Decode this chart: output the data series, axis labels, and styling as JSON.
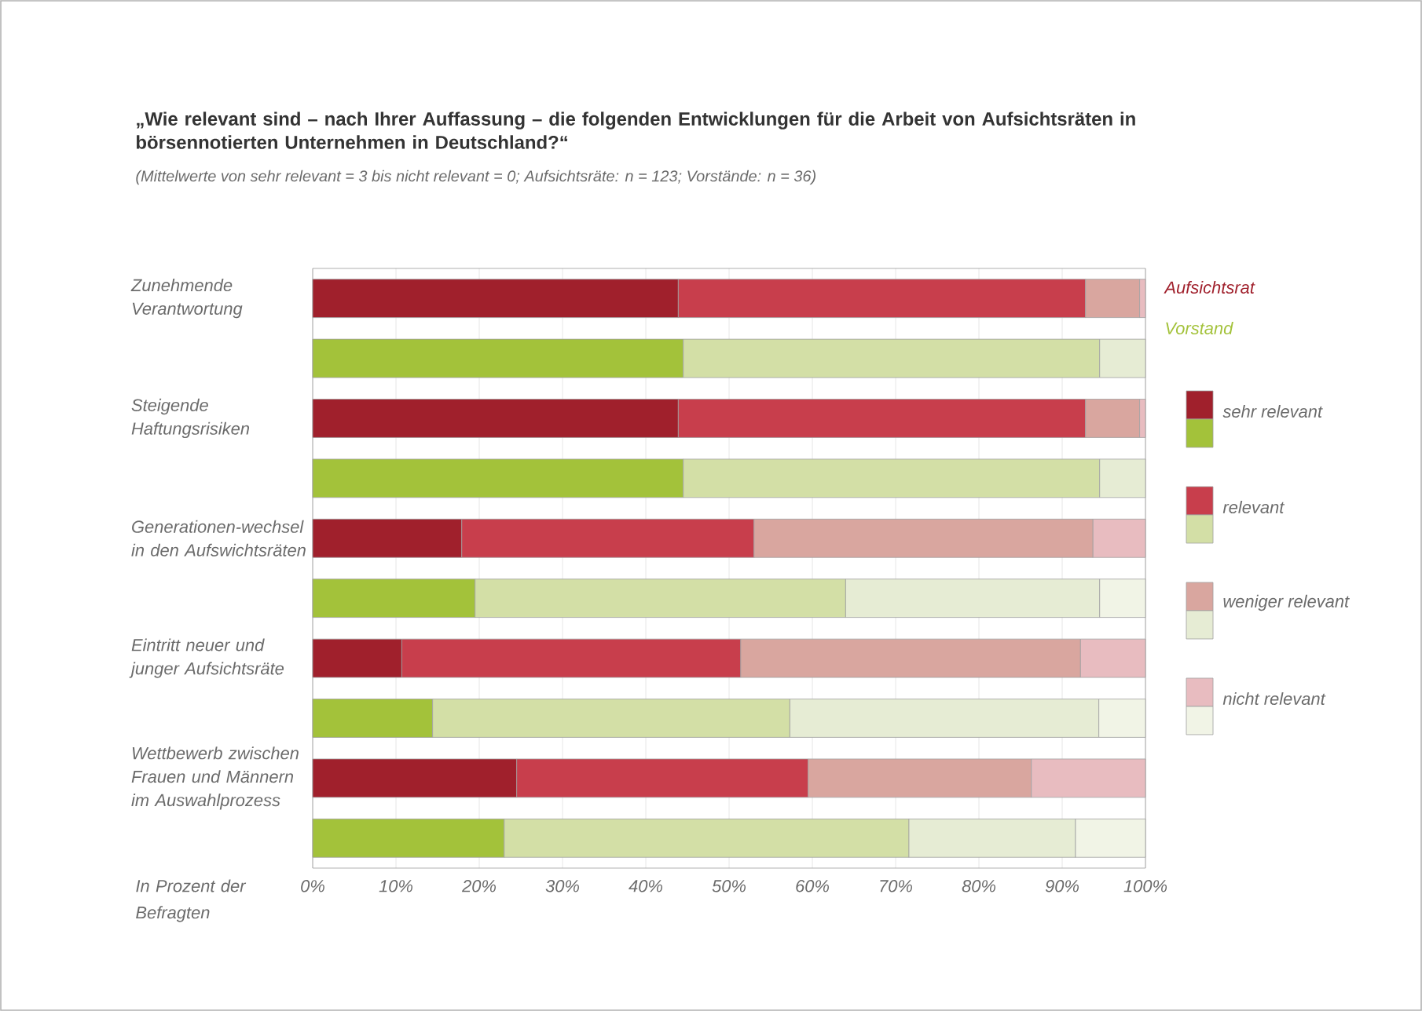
{
  "chart_data": {
    "type": "bar",
    "orientation": "horizontal",
    "stacked": true,
    "title": "„Wie relevant sind – nach Ihrer Auffassung – die folgenden Entwicklungen für die Arbeit von Aufsichtsräten in börsennotierten Unternehmen in Deutschland?“",
    "subtitle": "(Mittelwerte von sehr relevant = 3 bis nicht relevant = 0; Aufsichtsräte: n = 123; Vorstände: n = 36)",
    "xlabel": "In Prozent der Befragten",
    "annotations": [
      "Aufsichtsrat",
      "Vorstand"
    ],
    "categories": [
      "Zunehmende Verantwortung",
      null,
      "Steigende Haftungsrisiken",
      null,
      "Generationen-wechsel in den Aufswichtsräten",
      null,
      "Eintritt neuer und junger Aufsichtsräte",
      null,
      "Wettbewerb zwischen Frauen und Männern im Auswahlprozess",
      null
    ],
    "series": [
      {
        "name": "sehr relevant",
        "color": "#a0202c",
        "values": [
          43.9,
          null,
          43.9,
          null,
          17.9,
          null,
          10.7,
          null,
          24.5,
          null
        ]
      },
      {
        "name": "relevant",
        "color": "#c83e4c",
        "values": [
          48.9,
          null,
          48.9,
          null,
          35.1,
          null,
          40.7,
          null,
          35.0,
          null
        ]
      },
      {
        "name": "weniger relevant",
        "color": "#d9a69f",
        "values": [
          6.5,
          null,
          6.5,
          null,
          40.7,
          null,
          40.8,
          null,
          26.8,
          null
        ]
      },
      {
        "name": "nicht relevant",
        "color": "#e8bcc0",
        "values": [
          0.7,
          null,
          0.7,
          null,
          6.3,
          null,
          7.8,
          null,
          13.7,
          null
        ]
      },
      {
        "color": "#a3c23a",
        "values": [
          null,
          44.5,
          null,
          44.5,
          null,
          19.5,
          null,
          14.4,
          null,
          23.0
        ]
      },
      {
        "color": "#d3dfa6",
        "values": [
          null,
          50.0,
          null,
          50.0,
          null,
          44.5,
          null,
          42.9,
          null,
          48.6
        ]
      },
      {
        "color": "#e6ecd4",
        "values": [
          null,
          5.5,
          null,
          5.5,
          null,
          30.5,
          null,
          37.1,
          null,
          20.0
        ]
      },
      {
        "color": "#f1f4e6",
        "values": [
          null,
          null,
          null,
          null,
          null,
          5.5,
          null,
          5.6,
          null,
          8.4
        ]
      }
    ],
    "xlim": [
      0,
      100
    ],
    "xticks": [
      {
        "value": 0,
        "label": "0%"
      },
      {
        "value": 10,
        "label": "10%"
      },
      {
        "value": 20,
        "label": "20%"
      },
      {
        "value": 30,
        "label": "30%"
      },
      {
        "value": 40,
        "label": "40%"
      },
      {
        "value": 50,
        "label": "50%"
      },
      {
        "value": 60,
        "label": "60%"
      },
      {
        "value": 70,
        "label": "70%"
      },
      {
        "value": 80,
        "label": "80%"
      },
      {
        "value": 90,
        "label": "90%"
      },
      {
        "value": 100,
        "label": "100%"
      }
    ],
    "grid": "x",
    "legend": "right"
  }
}
